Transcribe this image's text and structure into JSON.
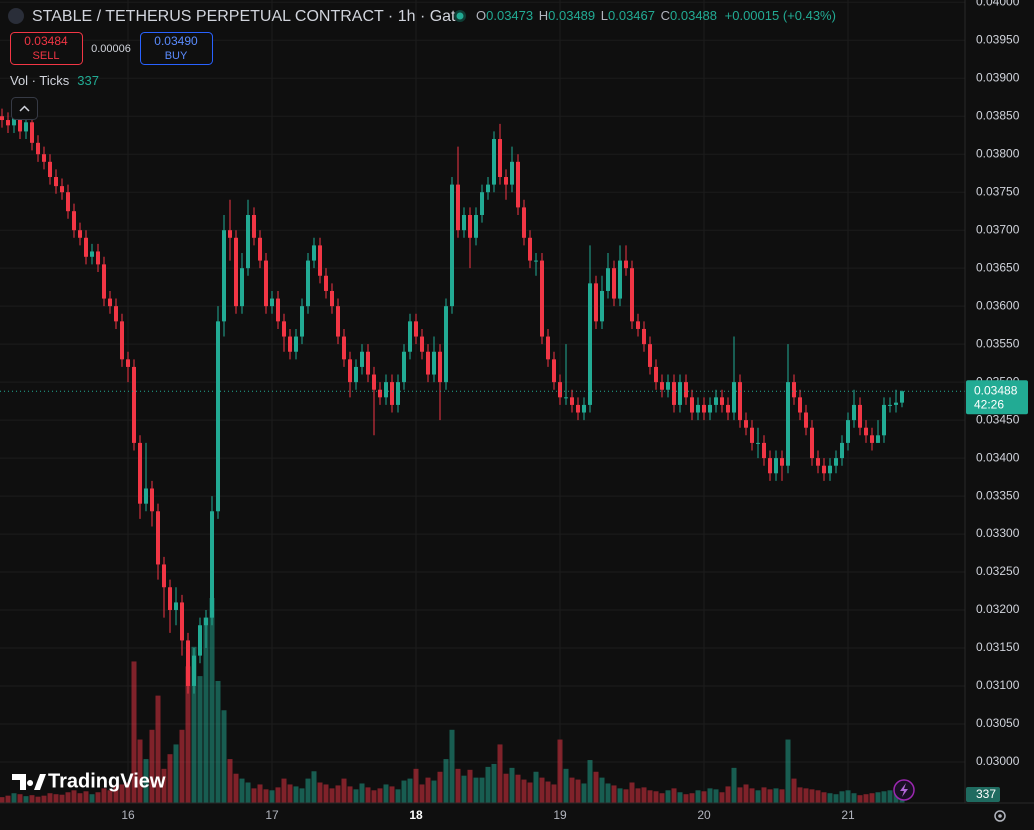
{
  "chart_data": {
    "type": "candlestick",
    "title": "STABLE / TETHERUS PERPETUAL CONTRACT · 1h · Gate",
    "ohlc_labels": [
      "O",
      "H",
      "L",
      "C"
    ],
    "change": "+0.00015 (+0.43%)",
    "sell": {
      "price": "0.03484",
      "label": "SELL"
    },
    "spread": "0.00006",
    "buy": {
      "price": "0.03490",
      "label": "BUY"
    },
    "volume_legend": "Vol · Ticks",
    "countdown": "42:26",
    "watermark": "TradingView",
    "up_color": "#22ab94",
    "down_color": "#f23645",
    "grid": true,
    "categories": [
      null,
      null,
      null,
      null,
      null,
      null,
      null,
      null,
      null,
      null,
      null,
      null,
      null,
      null,
      null,
      null,
      null,
      null,
      null,
      null,
      null,
      "16",
      null,
      null,
      null,
      null,
      null,
      null,
      null,
      null,
      null,
      null,
      null,
      null,
      null,
      null,
      null,
      null,
      null,
      null,
      null,
      null,
      null,
      null,
      null,
      "17",
      null,
      null,
      null,
      null,
      null,
      null,
      null,
      null,
      null,
      null,
      null,
      null,
      null,
      null,
      null,
      null,
      null,
      null,
      null,
      null,
      null,
      null,
      null,
      "18",
      null,
      null,
      null,
      null,
      null,
      null,
      null,
      null,
      null,
      null,
      null,
      null,
      null,
      null,
      null,
      null,
      null,
      null,
      null,
      null,
      null,
      null,
      null,
      "19",
      null,
      null,
      null,
      null,
      null,
      null,
      null,
      null,
      null,
      null,
      null,
      null,
      null,
      null,
      null,
      null,
      null,
      null,
      null,
      null,
      null,
      null,
      null,
      "20",
      null,
      null,
      null,
      null,
      null,
      null,
      null,
      null,
      null,
      null,
      null,
      null,
      null,
      null,
      null,
      null,
      null,
      null,
      null,
      null,
      null,
      null,
      null,
      "21",
      null,
      null,
      null,
      null,
      null,
      null,
      null,
      null,
      null
    ],
    "open": [
      0.0385,
      0.03845,
      0.03838,
      0.0385,
      0.0383,
      0.03842,
      0.03815,
      0.038,
      0.0379,
      0.0377,
      0.03758,
      0.0375,
      0.03725,
      0.037,
      0.0369,
      0.03665,
      0.03672,
      0.03655,
      0.0361,
      0.036,
      0.0358,
      0.0353,
      0.0352,
      0.0342,
      0.0334,
      0.0336,
      0.0333,
      0.0326,
      0.0323,
      0.032,
      0.0321,
      0.0316,
      0.031,
      0.0314,
      0.0318,
      0.0319,
      0.0333,
      0.0358,
      0.037,
      0.0369,
      0.036,
      0.0365,
      0.0372,
      0.0369,
      0.0366,
      0.036,
      0.0361,
      0.0358,
      0.0356,
      0.0354,
      0.0356,
      0.036,
      0.0366,
      0.0368,
      0.0364,
      0.0362,
      0.036,
      0.0356,
      0.0353,
      0.035,
      0.0352,
      0.0354,
      0.0351,
      0.0349,
      0.0348,
      0.035,
      0.0347,
      0.035,
      0.0354,
      0.0358,
      0.0356,
      0.0354,
      0.0351,
      0.0354,
      0.035,
      0.036,
      0.0376,
      0.037,
      0.0372,
      0.0369,
      0.0372,
      0.0375,
      0.0376,
      0.0382,
      0.0377,
      0.0376,
      0.0379,
      0.0373,
      0.0369,
      0.0366,
      0.0366,
      0.0356,
      0.0353,
      0.035,
      0.0348,
      0.0348,
      0.0347,
      0.0346,
      0.0347,
      0.0363,
      0.0358,
      0.0362,
      0.0365,
      0.0361,
      0.0366,
      0.0365,
      0.0358,
      0.0357,
      0.0355,
      0.0352,
      0.035,
      0.0349,
      0.035,
      0.0347,
      0.035,
      0.0348,
      0.0346,
      0.0347,
      0.0346,
      0.0347,
      0.0348,
      0.0347,
      0.0346,
      0.035,
      0.0345,
      0.0344,
      0.0342,
      0.0342,
      0.034,
      0.0338,
      0.034,
      0.0339,
      0.035,
      0.0348,
      0.0346,
      0.0344,
      0.034,
      0.0339,
      0.0338,
      0.0339,
      0.034,
      0.0342,
      0.0345,
      0.0347,
      0.0344,
      0.0343,
      0.0342,
      0.0343,
      0.0347,
      0.0347,
      0.03473
    ],
    "high": [
      0.0386,
      0.03855,
      0.0386,
      0.0386,
      0.03852,
      0.03852,
      0.03825,
      0.0381,
      0.038,
      0.0378,
      0.03768,
      0.0376,
      0.03735,
      0.0371,
      0.037,
      0.03682,
      0.03682,
      0.03665,
      0.0362,
      0.0361,
      0.0359,
      0.0354,
      0.0353,
      0.0343,
      0.0342,
      0.0337,
      0.0334,
      0.0327,
      0.0324,
      0.0323,
      0.0322,
      0.0317,
      0.0315,
      0.0319,
      0.032,
      0.0335,
      0.036,
      0.0372,
      0.0374,
      0.037,
      0.0367,
      0.0374,
      0.0373,
      0.037,
      0.0367,
      0.0362,
      0.0362,
      0.0359,
      0.0357,
      0.0357,
      0.0361,
      0.0367,
      0.0369,
      0.0369,
      0.0365,
      0.0363,
      0.0361,
      0.0357,
      0.0354,
      0.0353,
      0.0355,
      0.0355,
      0.0352,
      0.035,
      0.0351,
      0.0351,
      0.0351,
      0.0355,
      0.0359,
      0.0359,
      0.0357,
      0.0355,
      0.0356,
      0.0355,
      0.0361,
      0.0377,
      0.0381,
      0.0373,
      0.0373,
      0.0373,
      0.0376,
      0.0377,
      0.0383,
      0.0384,
      0.0378,
      0.0381,
      0.038,
      0.0374,
      0.037,
      0.0367,
      0.0367,
      0.0357,
      0.0354,
      0.0351,
      0.0355,
      0.0349,
      0.0348,
      0.0348,
      0.0368,
      0.0364,
      0.0364,
      0.0367,
      0.0366,
      0.0368,
      0.0368,
      0.0366,
      0.0359,
      0.0358,
      0.0356,
      0.0353,
      0.0351,
      0.0351,
      0.0351,
      0.0351,
      0.0351,
      0.0349,
      0.0348,
      0.0348,
      0.0348,
      0.0349,
      0.0349,
      0.0348,
      0.0356,
      0.0351,
      0.0346,
      0.0345,
      0.0344,
      0.0343,
      0.0341,
      0.0341,
      0.0341,
      0.0355,
      0.0351,
      0.0349,
      0.0347,
      0.0345,
      0.0341,
      0.034,
      0.034,
      0.0341,
      0.0343,
      0.0346,
      0.0349,
      0.0348,
      0.0345,
      0.0344,
      0.0345,
      0.0348,
      0.0348,
      0.0349,
      0.03489
    ],
    "low": [
      0.03835,
      0.03828,
      0.03828,
      0.0382,
      0.0382,
      0.03805,
      0.0379,
      0.0378,
      0.0376,
      0.03748,
      0.0374,
      0.03715,
      0.0369,
      0.0368,
      0.03655,
      0.03655,
      0.03645,
      0.036,
      0.0359,
      0.0357,
      0.0352,
      0.035,
      0.0341,
      0.0332,
      0.0333,
      0.0331,
      0.0324,
      0.0319,
      0.0317,
      0.0318,
      0.0314,
      0.0309,
      0.0309,
      0.0313,
      0.0315,
      0.0318,
      0.0332,
      0.0356,
      0.0366,
      0.0359,
      0.0359,
      0.0364,
      0.0368,
      0.0365,
      0.0359,
      0.0359,
      0.0357,
      0.0354,
      0.0353,
      0.0353,
      0.0355,
      0.0359,
      0.0365,
      0.0363,
      0.0361,
      0.0359,
      0.0355,
      0.0352,
      0.0348,
      0.0349,
      0.0351,
      0.035,
      0.0343,
      0.0347,
      0.0347,
      0.0346,
      0.0346,
      0.0349,
      0.0353,
      0.0355,
      0.0353,
      0.035,
      0.035,
      0.0345,
      0.0349,
      0.0359,
      0.0369,
      0.0369,
      0.0365,
      0.0368,
      0.0371,
      0.0374,
      0.0375,
      0.0376,
      0.0374,
      0.0375,
      0.0372,
      0.0368,
      0.0365,
      0.0364,
      0.0355,
      0.0352,
      0.0349,
      0.0347,
      0.0347,
      0.0346,
      0.0345,
      0.0345,
      0.0346,
      0.0357,
      0.0357,
      0.0361,
      0.036,
      0.036,
      0.0364,
      0.0357,
      0.0356,
      0.0354,
      0.0351,
      0.0349,
      0.0348,
      0.0348,
      0.0346,
      0.0346,
      0.0347,
      0.0345,
      0.0345,
      0.0345,
      0.0345,
      0.0346,
      0.0346,
      0.0345,
      0.0345,
      0.0344,
      0.0343,
      0.0341,
      0.034,
      0.0339,
      0.0337,
      0.0337,
      0.0337,
      0.0338,
      0.0347,
      0.0345,
      0.0343,
      0.0339,
      0.0338,
      0.0337,
      0.0337,
      0.0338,
      0.0339,
      0.0341,
      0.0344,
      0.0343,
      0.0342,
      0.0341,
      0.0342,
      0.0342,
      0.0346,
      0.0346,
      0.03467
    ],
    "close": [
      0.03845,
      0.03838,
      0.0385,
      0.0383,
      0.03842,
      0.03815,
      0.038,
      0.0379,
      0.0377,
      0.03758,
      0.0375,
      0.03725,
      0.037,
      0.0369,
      0.03665,
      0.03672,
      0.03655,
      0.0361,
      0.036,
      0.0358,
      0.0353,
      0.0352,
      0.0342,
      0.0334,
      0.0336,
      0.0333,
      0.0326,
      0.0323,
      0.032,
      0.0321,
      0.0316,
      0.031,
      0.0314,
      0.0318,
      0.0319,
      0.0333,
      0.0358,
      0.037,
      0.0369,
      0.036,
      0.0365,
      0.0372,
      0.0369,
      0.0366,
      0.036,
      0.0361,
      0.0358,
      0.0356,
      0.0354,
      0.0356,
      0.036,
      0.0366,
      0.0368,
      0.0364,
      0.0362,
      0.036,
      0.0356,
      0.0353,
      0.035,
      0.0352,
      0.0354,
      0.0351,
      0.0349,
      0.0348,
      0.035,
      0.0347,
      0.035,
      0.0354,
      0.0358,
      0.0356,
      0.0354,
      0.0351,
      0.0354,
      0.035,
      0.036,
      0.0376,
      0.037,
      0.0372,
      0.0369,
      0.0372,
      0.0375,
      0.0376,
      0.0382,
      0.0377,
      0.0376,
      0.0379,
      0.0373,
      0.0369,
      0.0366,
      0.0366,
      0.0356,
      0.0353,
      0.035,
      0.0348,
      0.0348,
      0.0347,
      0.0346,
      0.0347,
      0.0363,
      0.0358,
      0.0362,
      0.0365,
      0.0361,
      0.0366,
      0.0365,
      0.0358,
      0.0357,
      0.0355,
      0.0352,
      0.035,
      0.0349,
      0.035,
      0.0347,
      0.035,
      0.0348,
      0.0346,
      0.0347,
      0.0346,
      0.0347,
      0.0348,
      0.0347,
      0.0346,
      0.035,
      0.0345,
      0.0344,
      0.0342,
      0.0342,
      0.034,
      0.0338,
      0.034,
      0.0339,
      0.035,
      0.0348,
      0.0346,
      0.0344,
      0.034,
      0.0339,
      0.0338,
      0.0339,
      0.034,
      0.0342,
      0.0345,
      0.0347,
      0.0344,
      0.0343,
      0.0342,
      0.0343,
      0.0347,
      0.0347,
      0.03473,
      0.03488
    ],
    "volume": [
      120,
      150,
      200,
      180,
      140,
      160,
      130,
      150,
      200,
      180,
      170,
      220,
      260,
      200,
      240,
      180,
      220,
      300,
      260,
      340,
      380,
      420,
      2900,
      1300,
      900,
      1500,
      2200,
      700,
      1000,
      1200,
      1500,
      2800,
      3200,
      2600,
      3800,
      4200,
      2500,
      1900,
      900,
      600,
      500,
      420,
      300,
      380,
      280,
      260,
      320,
      500,
      380,
      340,
      300,
      500,
      650,
      420,
      380,
      300,
      360,
      500,
      340,
      280,
      400,
      320,
      260,
      300,
      380,
      340,
      280,
      460,
      500,
      700,
      380,
      520,
      460,
      640,
      900,
      1500,
      700,
      560,
      680,
      520,
      520,
      740,
      800,
      1200,
      600,
      720,
      580,
      480,
      420,
      640,
      520,
      440,
      380,
      1300,
      700,
      520,
      480,
      400,
      880,
      640,
      520,
      400,
      360,
      300,
      280,
      420,
      300,
      320,
      260,
      240,
      200,
      260,
      300,
      220,
      180,
      200,
      260,
      240,
      300,
      280,
      220,
      340,
      720,
      320,
      380,
      300,
      260,
      320,
      280,
      300,
      280,
      1300,
      500,
      320,
      300,
      280,
      260,
      220,
      200,
      180,
      240,
      260,
      200,
      160,
      180,
      200,
      220,
      240,
      260,
      300,
      337
    ],
    "ylim": [
      0.02946,
      0.04003
    ],
    "yticks": [
      {
        "value": 0.03,
        "label": "0.03000"
      },
      {
        "value": 0.0305,
        "label": "0.03050"
      },
      {
        "value": 0.031,
        "label": "0.03100"
      },
      {
        "value": 0.0315,
        "label": "0.03150"
      },
      {
        "value": 0.032,
        "label": "0.03200"
      },
      {
        "value": 0.0325,
        "label": "0.03250"
      },
      {
        "value": 0.033,
        "label": "0.03300"
      },
      {
        "value": 0.0335,
        "label": "0.03350"
      },
      {
        "value": 0.034,
        "label": "0.03400"
      },
      {
        "value": 0.0345,
        "label": "0.03450"
      },
      {
        "value": 0.035,
        "label": "0.03500"
      },
      {
        "value": 0.0355,
        "label": "0.03550"
      },
      {
        "value": 0.036,
        "label": "0.03600"
      },
      {
        "value": 0.0365,
        "label": "0.03650"
      },
      {
        "value": 0.037,
        "label": "0.03700"
      },
      {
        "value": 0.0375,
        "label": "0.03750"
      },
      {
        "value": 0.038,
        "label": "0.03800"
      },
      {
        "value": 0.0385,
        "label": "0.03850"
      },
      {
        "value": 0.039,
        "label": "0.03900"
      },
      {
        "value": 0.0395,
        "label": "0.03950"
      },
      {
        "value": 0.04,
        "label": "0.04000"
      }
    ]
  }
}
